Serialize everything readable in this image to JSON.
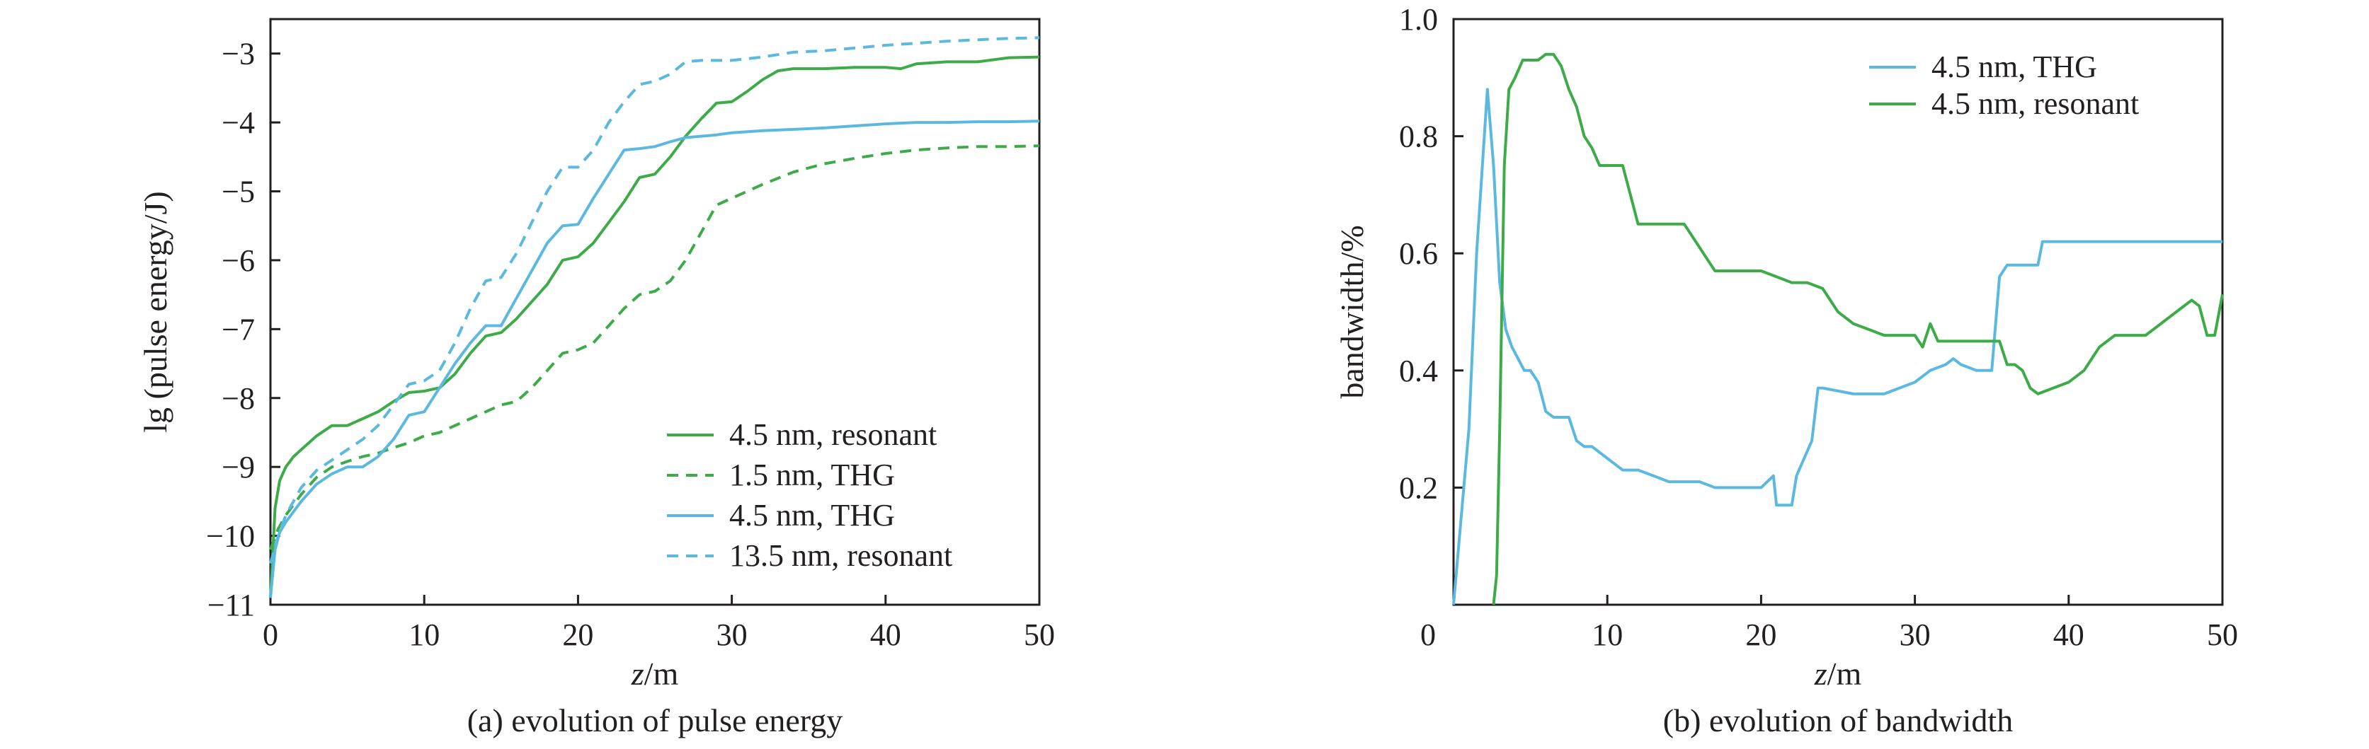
{
  "colors": {
    "green": "#3cab48",
    "blue": "#5bb9e0",
    "axis": "#231f20"
  },
  "chart_data": [
    {
      "type": "line",
      "caption": "(a) evolution of pulse energy",
      "title": "",
      "xlabel": {
        "var": "z",
        "unit": "/m"
      },
      "ylabel": "lg (pulse energy/J)",
      "xlim": [
        0,
        50
      ],
      "ylim": [
        -11,
        -2.5
      ],
      "xticks": [
        0,
        10,
        20,
        30,
        40,
        50
      ],
      "yticks": [
        -11,
        -10,
        -9,
        -8,
        -7,
        -6,
        -5,
        -4,
        -3
      ],
      "xtick_labels": [
        "0",
        "10",
        "20",
        "30",
        "40",
        "50"
      ],
      "ytick_labels": [
        "−11",
        "−10",
        "−9",
        "−8",
        "−7",
        "−6",
        "−5",
        "−4",
        "−3"
      ],
      "grid": false,
      "legend_position": "bottom-right",
      "series": [
        {
          "name": "4.5 nm, resonant",
          "color": "green",
          "dash": false,
          "x": [
            0,
            0.3,
            0.6,
            1,
            1.5,
            2,
            3,
            4,
            5,
            6,
            7,
            8,
            9,
            10,
            11,
            12,
            13,
            14,
            15,
            16,
            17,
            18,
            19,
            20,
            21,
            22,
            23,
            24,
            25,
            26,
            27,
            28,
            29,
            30,
            31,
            32,
            33,
            34,
            35,
            36,
            38,
            40,
            41,
            42,
            44,
            46,
            48,
            50
          ],
          "y": [
            -10.9,
            -9.6,
            -9.2,
            -9.0,
            -8.85,
            -8.75,
            -8.55,
            -8.4,
            -8.4,
            -8.3,
            -8.2,
            -8.05,
            -7.92,
            -7.9,
            -7.85,
            -7.65,
            -7.35,
            -7.1,
            -7.05,
            -6.85,
            -6.6,
            -6.35,
            -6.0,
            -5.95,
            -5.75,
            -5.45,
            -5.15,
            -4.8,
            -4.75,
            -4.5,
            -4.2,
            -3.95,
            -3.72,
            -3.7,
            -3.55,
            -3.38,
            -3.25,
            -3.22,
            -3.22,
            -3.22,
            -3.2,
            -3.2,
            -3.22,
            -3.15,
            -3.12,
            -3.12,
            -3.06,
            -3.05
          ]
        },
        {
          "name": "1.5 nm, THG",
          "color": "green",
          "dash": true,
          "x": [
            0,
            0.5,
            1,
            2,
            3,
            4,
            5,
            6,
            7,
            8,
            9,
            10,
            11,
            12,
            13,
            14,
            15,
            16,
            17,
            18,
            19,
            20,
            21,
            22,
            23,
            24,
            25,
            26,
            27,
            28,
            29,
            30,
            32,
            34,
            36,
            38,
            40,
            42,
            44,
            46,
            48,
            50
          ],
          "y": [
            -10.2,
            -9.9,
            -9.7,
            -9.4,
            -9.15,
            -9.0,
            -8.92,
            -8.85,
            -8.8,
            -8.72,
            -8.65,
            -8.55,
            -8.5,
            -8.4,
            -8.3,
            -8.2,
            -8.1,
            -8.05,
            -7.85,
            -7.6,
            -7.35,
            -7.3,
            -7.2,
            -6.95,
            -6.7,
            -6.5,
            -6.45,
            -6.3,
            -6.0,
            -5.6,
            -5.2,
            -5.1,
            -4.9,
            -4.72,
            -4.6,
            -4.52,
            -4.45,
            -4.4,
            -4.37,
            -4.35,
            -4.35,
            -4.34
          ]
        },
        {
          "name": "4.5 nm, THG",
          "color": "blue",
          "dash": false,
          "x": [
            0,
            0.3,
            0.6,
            1,
            2,
            3,
            4,
            5,
            6,
            7,
            8,
            9,
            10,
            11,
            12,
            13,
            14,
            15,
            16,
            17,
            18,
            19,
            20,
            21,
            22,
            23,
            24,
            25,
            26,
            27,
            28,
            29,
            30,
            32,
            34,
            36,
            38,
            40,
            42,
            44,
            46,
            48,
            50
          ],
          "y": [
            -10.9,
            -10.2,
            -9.95,
            -9.8,
            -9.5,
            -9.25,
            -9.1,
            -9.0,
            -9.0,
            -8.85,
            -8.6,
            -8.25,
            -8.2,
            -7.85,
            -7.5,
            -7.2,
            -6.95,
            -6.95,
            -6.55,
            -6.15,
            -5.75,
            -5.5,
            -5.48,
            -5.1,
            -4.75,
            -4.4,
            -4.38,
            -4.35,
            -4.28,
            -4.22,
            -4.2,
            -4.18,
            -4.15,
            -4.12,
            -4.1,
            -4.08,
            -4.05,
            -4.02,
            -4.0,
            -4.0,
            -3.99,
            -3.99,
            -3.98
          ]
        },
        {
          "name": "13.5 nm, resonant",
          "color": "blue",
          "dash": true,
          "x": [
            0,
            0.5,
            1,
            2,
            3,
            4,
            5,
            6,
            7,
            8,
            9,
            10,
            11,
            12,
            13,
            14,
            15,
            16,
            17,
            18,
            19,
            20,
            21,
            22,
            23,
            24,
            25,
            26,
            27,
            28,
            29,
            30,
            32,
            34,
            36,
            38,
            40,
            42,
            44,
            46,
            48,
            50
          ],
          "y": [
            -10.4,
            -10.0,
            -9.7,
            -9.3,
            -9.05,
            -8.9,
            -8.75,
            -8.6,
            -8.4,
            -8.1,
            -7.8,
            -7.75,
            -7.6,
            -7.2,
            -6.7,
            -6.3,
            -6.25,
            -5.9,
            -5.45,
            -5.0,
            -4.65,
            -4.65,
            -4.4,
            -4.0,
            -3.7,
            -3.45,
            -3.4,
            -3.3,
            -3.12,
            -3.1,
            -3.1,
            -3.1,
            -3.05,
            -2.98,
            -2.96,
            -2.92,
            -2.88,
            -2.85,
            -2.82,
            -2.8,
            -2.78,
            -2.77
          ]
        }
      ]
    },
    {
      "type": "line",
      "caption": "(b) evolution of bandwidth",
      "title": "",
      "xlabel": {
        "var": "z",
        "unit": "/m"
      },
      "ylabel": "bandwidth/%",
      "xlim": [
        0,
        50
      ],
      "ylim": [
        0,
        1.0
      ],
      "xticks": [
        0,
        10,
        20,
        30,
        40,
        50
      ],
      "yticks": [
        0.2,
        0.4,
        0.6,
        0.8,
        1.0
      ],
      "xtick_labels": [
        "0",
        "10",
        "20",
        "30",
        "40",
        "50"
      ],
      "ytick_labels": [
        "0.2",
        "0.4",
        "0.6",
        "0.8",
        "1.0"
      ],
      "grid": false,
      "legend_position": "top-right",
      "series": [
        {
          "name": "4.5 nm, THG",
          "color": "blue",
          "dash": false,
          "x": [
            0,
            1,
            1.5,
            2.2,
            2.6,
            3.0,
            3.4,
            3.8,
            4.2,
            4.6,
            5.0,
            5.5,
            6.0,
            6.5,
            7.0,
            7.5,
            8.0,
            8.5,
            9.0,
            10.0,
            11.0,
            12.0,
            13.0,
            14.0,
            15.0,
            16.0,
            17.0,
            18.0,
            20.0,
            20.8,
            21.0,
            22.0,
            22.3,
            22.8,
            23.3,
            23.7,
            24,
            26,
            28,
            29,
            30,
            31,
            32,
            32.5,
            33,
            34,
            35,
            35.5,
            36,
            38,
            38.3,
            40,
            50
          ],
          "y": [
            0,
            0.3,
            0.6,
            0.88,
            0.75,
            0.55,
            0.47,
            0.44,
            0.42,
            0.4,
            0.4,
            0.38,
            0.33,
            0.32,
            0.32,
            0.32,
            0.28,
            0.27,
            0.27,
            0.25,
            0.23,
            0.23,
            0.22,
            0.21,
            0.21,
            0.21,
            0.2,
            0.2,
            0.2,
            0.22,
            0.17,
            0.17,
            0.22,
            0.25,
            0.28,
            0.37,
            0.37,
            0.36,
            0.36,
            0.37,
            0.38,
            0.4,
            0.41,
            0.42,
            0.41,
            0.4,
            0.4,
            0.56,
            0.58,
            0.58,
            0.62,
            0.62,
            0.62
          ]
        },
        {
          "name": "4.5 nm, resonant",
          "color": "green",
          "dash": false,
          "x": [
            2.6,
            2.8,
            3.0,
            3.3,
            3.6,
            4.0,
            4.5,
            5.0,
            5.5,
            6.0,
            6.5,
            7.0,
            7.5,
            8.0,
            8.5,
            9.0,
            9.5,
            10.0,
            11.0,
            11.5,
            12.0,
            14.0,
            15.0,
            16.0,
            17.0,
            18.0,
            19.0,
            20.0,
            21.0,
            22.0,
            23.0,
            24.0,
            25.0,
            26.0,
            27.0,
            28.0,
            29.0,
            30.0,
            30.5,
            31.0,
            31.5,
            32.0,
            33.0,
            34.0,
            35.0,
            35.5,
            36.0,
            36.5,
            37.0,
            37.5,
            38.0,
            39.0,
            40.0,
            41.0,
            42.0,
            43.0,
            44.0,
            45.0,
            46.0,
            47.0,
            48.0,
            48.5,
            49.0,
            49.5,
            50.0
          ],
          "y": [
            0,
            0.05,
            0.3,
            0.75,
            0.88,
            0.9,
            0.93,
            0.93,
            0.93,
            0.94,
            0.94,
            0.92,
            0.88,
            0.85,
            0.8,
            0.78,
            0.75,
            0.75,
            0.75,
            0.7,
            0.65,
            0.65,
            0.65,
            0.61,
            0.57,
            0.57,
            0.57,
            0.57,
            0.56,
            0.55,
            0.55,
            0.54,
            0.5,
            0.48,
            0.47,
            0.46,
            0.46,
            0.46,
            0.44,
            0.48,
            0.45,
            0.45,
            0.45,
            0.45,
            0.45,
            0.45,
            0.41,
            0.41,
            0.4,
            0.37,
            0.36,
            0.37,
            0.38,
            0.4,
            0.44,
            0.46,
            0.46,
            0.46,
            0.48,
            0.5,
            0.52,
            0.51,
            0.46,
            0.46,
            0.53
          ]
        }
      ]
    }
  ]
}
